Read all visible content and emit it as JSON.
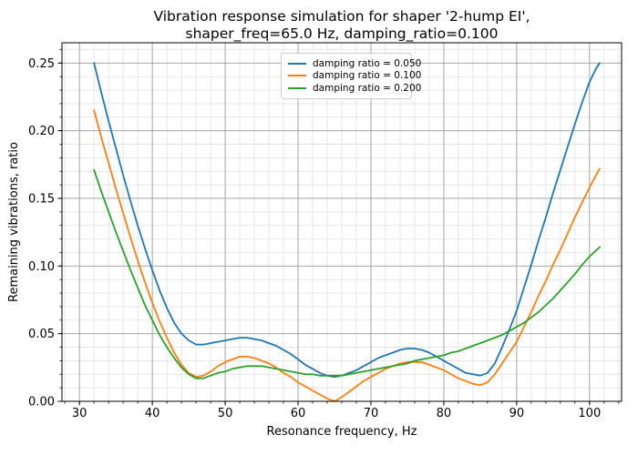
{
  "figure": {
    "title": "Vibration response simulation for shaper '2-hump EI',\nshaper_freq=65.0 Hz, damping_ratio=0.100"
  },
  "chart_data": {
    "type": "line",
    "title": "Vibration response simulation for shaper '2-hump EI', shaper_freq=65.0 Hz, damping_ratio=0.100",
    "xlabel": "Resonance frequency, Hz",
    "ylabel": "Remaining vibrations, ratio",
    "xlim": [
      27.6,
      104.4
    ],
    "ylim": [
      0,
      0.265
    ],
    "x_major_ticks": [
      30,
      40,
      50,
      60,
      70,
      80,
      90,
      100
    ],
    "x_tick_labels": [
      "30",
      "40",
      "50",
      "60",
      "70",
      "80",
      "90",
      "100"
    ],
    "x_minor_step": 2,
    "y_major_ticks": [
      0,
      0.05,
      0.1,
      0.15,
      0.2,
      0.25
    ],
    "y_tick_labels": [
      "0.00",
      "0.05",
      "0.10",
      "0.15",
      "0.20",
      "0.25"
    ],
    "y_minor_step": 0.01,
    "grid": "both major and minor, on",
    "legend_position": "upper center",
    "series": [
      {
        "name": "damping ratio = 0.050",
        "color": "#1f77b4",
        "points": [
          [
            32,
            0.25
          ],
          [
            33,
            0.228
          ],
          [
            34,
            0.207
          ],
          [
            35,
            0.187
          ],
          [
            36,
            0.167
          ],
          [
            37,
            0.148
          ],
          [
            38,
            0.13
          ],
          [
            39,
            0.113
          ],
          [
            40,
            0.097
          ],
          [
            41,
            0.082
          ],
          [
            42,
            0.069
          ],
          [
            43,
            0.058
          ],
          [
            44,
            0.05
          ],
          [
            45,
            0.045
          ],
          [
            46,
            0.042
          ],
          [
            47,
            0.042
          ],
          [
            48,
            0.043
          ],
          [
            49,
            0.044
          ],
          [
            50,
            0.045
          ],
          [
            51,
            0.046
          ],
          [
            52,
            0.047
          ],
          [
            53,
            0.047
          ],
          [
            54,
            0.046
          ],
          [
            55,
            0.045
          ],
          [
            56,
            0.043
          ],
          [
            57,
            0.041
          ],
          [
            58,
            0.038
          ],
          [
            59,
            0.035
          ],
          [
            60,
            0.031
          ],
          [
            61,
            0.027
          ],
          [
            62,
            0.024
          ],
          [
            63,
            0.021
          ],
          [
            64,
            0.019
          ],
          [
            65,
            0.018
          ],
          [
            66,
            0.019
          ],
          [
            67,
            0.021
          ],
          [
            68,
            0.023
          ],
          [
            69,
            0.026
          ],
          [
            70,
            0.029
          ],
          [
            71,
            0.032
          ],
          [
            72,
            0.034
          ],
          [
            73,
            0.036
          ],
          [
            74,
            0.038
          ],
          [
            75,
            0.039
          ],
          [
            76,
            0.039
          ],
          [
            77,
            0.038
          ],
          [
            78,
            0.036
          ],
          [
            79,
            0.033
          ],
          [
            80,
            0.03
          ],
          [
            81,
            0.027
          ],
          [
            82,
            0.024
          ],
          [
            83,
            0.021
          ],
          [
            84,
            0.02
          ],
          [
            85,
            0.019
          ],
          [
            86,
            0.021
          ],
          [
            87,
            0.028
          ],
          [
            88,
            0.04
          ],
          [
            89,
            0.053
          ],
          [
            90,
            0.067
          ],
          [
            91,
            0.084
          ],
          [
            92,
            0.101
          ],
          [
            93,
            0.119
          ],
          [
            94,
            0.136
          ],
          [
            95,
            0.154
          ],
          [
            96,
            0.171
          ],
          [
            97,
            0.188
          ],
          [
            98,
            0.205
          ],
          [
            99,
            0.221
          ],
          [
            100,
            0.236
          ],
          [
            101,
            0.247
          ],
          [
            101.4,
            0.25
          ]
        ]
      },
      {
        "name": "damping ratio = 0.100",
        "color": "#ff7f0e",
        "points": [
          [
            32,
            0.215
          ],
          [
            33,
            0.195
          ],
          [
            34,
            0.176
          ],
          [
            35,
            0.157
          ],
          [
            36,
            0.139
          ],
          [
            37,
            0.121
          ],
          [
            38,
            0.104
          ],
          [
            39,
            0.088
          ],
          [
            40,
            0.073
          ],
          [
            41,
            0.059
          ],
          [
            42,
            0.047
          ],
          [
            43,
            0.036
          ],
          [
            44,
            0.027
          ],
          [
            45,
            0.021
          ],
          [
            46,
            0.018
          ],
          [
            47,
            0.019
          ],
          [
            48,
            0.022
          ],
          [
            49,
            0.026
          ],
          [
            50,
            0.029
          ],
          [
            51,
            0.031
          ],
          [
            52,
            0.033
          ],
          [
            53,
            0.033
          ],
          [
            54,
            0.032
          ],
          [
            55,
            0.03
          ],
          [
            56,
            0.028
          ],
          [
            57,
            0.025
          ],
          [
            58,
            0.021
          ],
          [
            59,
            0.018
          ],
          [
            60,
            0.014
          ],
          [
            61,
            0.011
          ],
          [
            62,
            0.008
          ],
          [
            63,
            0.005
          ],
          [
            64,
            0.002
          ],
          [
            65,
            0.0
          ],
          [
            66,
            0.003
          ],
          [
            67,
            0.007
          ],
          [
            68,
            0.011
          ],
          [
            69,
            0.015
          ],
          [
            70,
            0.018
          ],
          [
            71,
            0.021
          ],
          [
            72,
            0.024
          ],
          [
            73,
            0.026
          ],
          [
            74,
            0.028
          ],
          [
            75,
            0.029
          ],
          [
            76,
            0.029
          ],
          [
            77,
            0.029
          ],
          [
            78,
            0.027
          ],
          [
            79,
            0.025
          ],
          [
            80,
            0.023
          ],
          [
            81,
            0.02
          ],
          [
            82,
            0.017
          ],
          [
            83,
            0.015
          ],
          [
            84,
            0.013
          ],
          [
            85,
            0.012
          ],
          [
            86,
            0.014
          ],
          [
            87,
            0.02
          ],
          [
            88,
            0.028
          ],
          [
            89,
            0.036
          ],
          [
            90,
            0.044
          ],
          [
            91,
            0.055
          ],
          [
            92,
            0.066
          ],
          [
            93,
            0.078
          ],
          [
            94,
            0.089
          ],
          [
            95,
            0.101
          ],
          [
            96,
            0.112
          ],
          [
            97,
            0.124
          ],
          [
            98,
            0.136
          ],
          [
            99,
            0.147
          ],
          [
            100,
            0.158
          ],
          [
            101,
            0.168
          ],
          [
            101.4,
            0.172
          ]
        ]
      },
      {
        "name": "damping ratio = 0.200",
        "color": "#2ca02c",
        "points": [
          [
            32,
            0.171
          ],
          [
            33,
            0.155
          ],
          [
            34,
            0.14
          ],
          [
            35,
            0.125
          ],
          [
            36,
            0.111
          ],
          [
            37,
            0.097
          ],
          [
            38,
            0.084
          ],
          [
            39,
            0.071
          ],
          [
            40,
            0.06
          ],
          [
            41,
            0.049
          ],
          [
            42,
            0.04
          ],
          [
            43,
            0.032
          ],
          [
            44,
            0.025
          ],
          [
            45,
            0.02
          ],
          [
            46,
            0.017
          ],
          [
            47,
            0.017
          ],
          [
            48,
            0.019
          ],
          [
            49,
            0.021
          ],
          [
            50,
            0.022
          ],
          [
            51,
            0.024
          ],
          [
            52,
            0.025
          ],
          [
            53,
            0.026
          ],
          [
            54,
            0.026
          ],
          [
            55,
            0.026
          ],
          [
            56,
            0.025
          ],
          [
            57,
            0.024
          ],
          [
            58,
            0.023
          ],
          [
            59,
            0.022
          ],
          [
            60,
            0.021
          ],
          [
            61,
            0.02
          ],
          [
            62,
            0.02
          ],
          [
            63,
            0.019
          ],
          [
            64,
            0.019
          ],
          [
            65,
            0.019
          ],
          [
            66,
            0.019
          ],
          [
            67,
            0.02
          ],
          [
            68,
            0.021
          ],
          [
            69,
            0.022
          ],
          [
            70,
            0.023
          ],
          [
            71,
            0.024
          ],
          [
            72,
            0.025
          ],
          [
            73,
            0.026
          ],
          [
            74,
            0.027
          ],
          [
            75,
            0.028
          ],
          [
            76,
            0.03
          ],
          [
            77,
            0.031
          ],
          [
            78,
            0.032
          ],
          [
            79,
            0.033
          ],
          [
            80,
            0.034
          ],
          [
            81,
            0.036
          ],
          [
            82,
            0.037
          ],
          [
            83,
            0.039
          ],
          [
            84,
            0.041
          ],
          [
            85,
            0.043
          ],
          [
            86,
            0.045
          ],
          [
            87,
            0.047
          ],
          [
            88,
            0.049
          ],
          [
            89,
            0.052
          ],
          [
            90,
            0.055
          ],
          [
            91,
            0.058
          ],
          [
            92,
            0.062
          ],
          [
            93,
            0.066
          ],
          [
            94,
            0.071
          ],
          [
            95,
            0.076
          ],
          [
            96,
            0.082
          ],
          [
            97,
            0.088
          ],
          [
            98,
            0.094
          ],
          [
            99,
            0.101
          ],
          [
            100,
            0.107
          ],
          [
            101,
            0.112
          ],
          [
            101.4,
            0.114
          ]
        ]
      }
    ],
    "colors": {
      "series_blue": "#1f77b4",
      "series_orange": "#ff7f0e",
      "series_green": "#2ca02c",
      "grid_major": "#9a9a9a",
      "grid_minor": "#dddddd",
      "spine": "#000000",
      "background": "#ffffff"
    }
  }
}
